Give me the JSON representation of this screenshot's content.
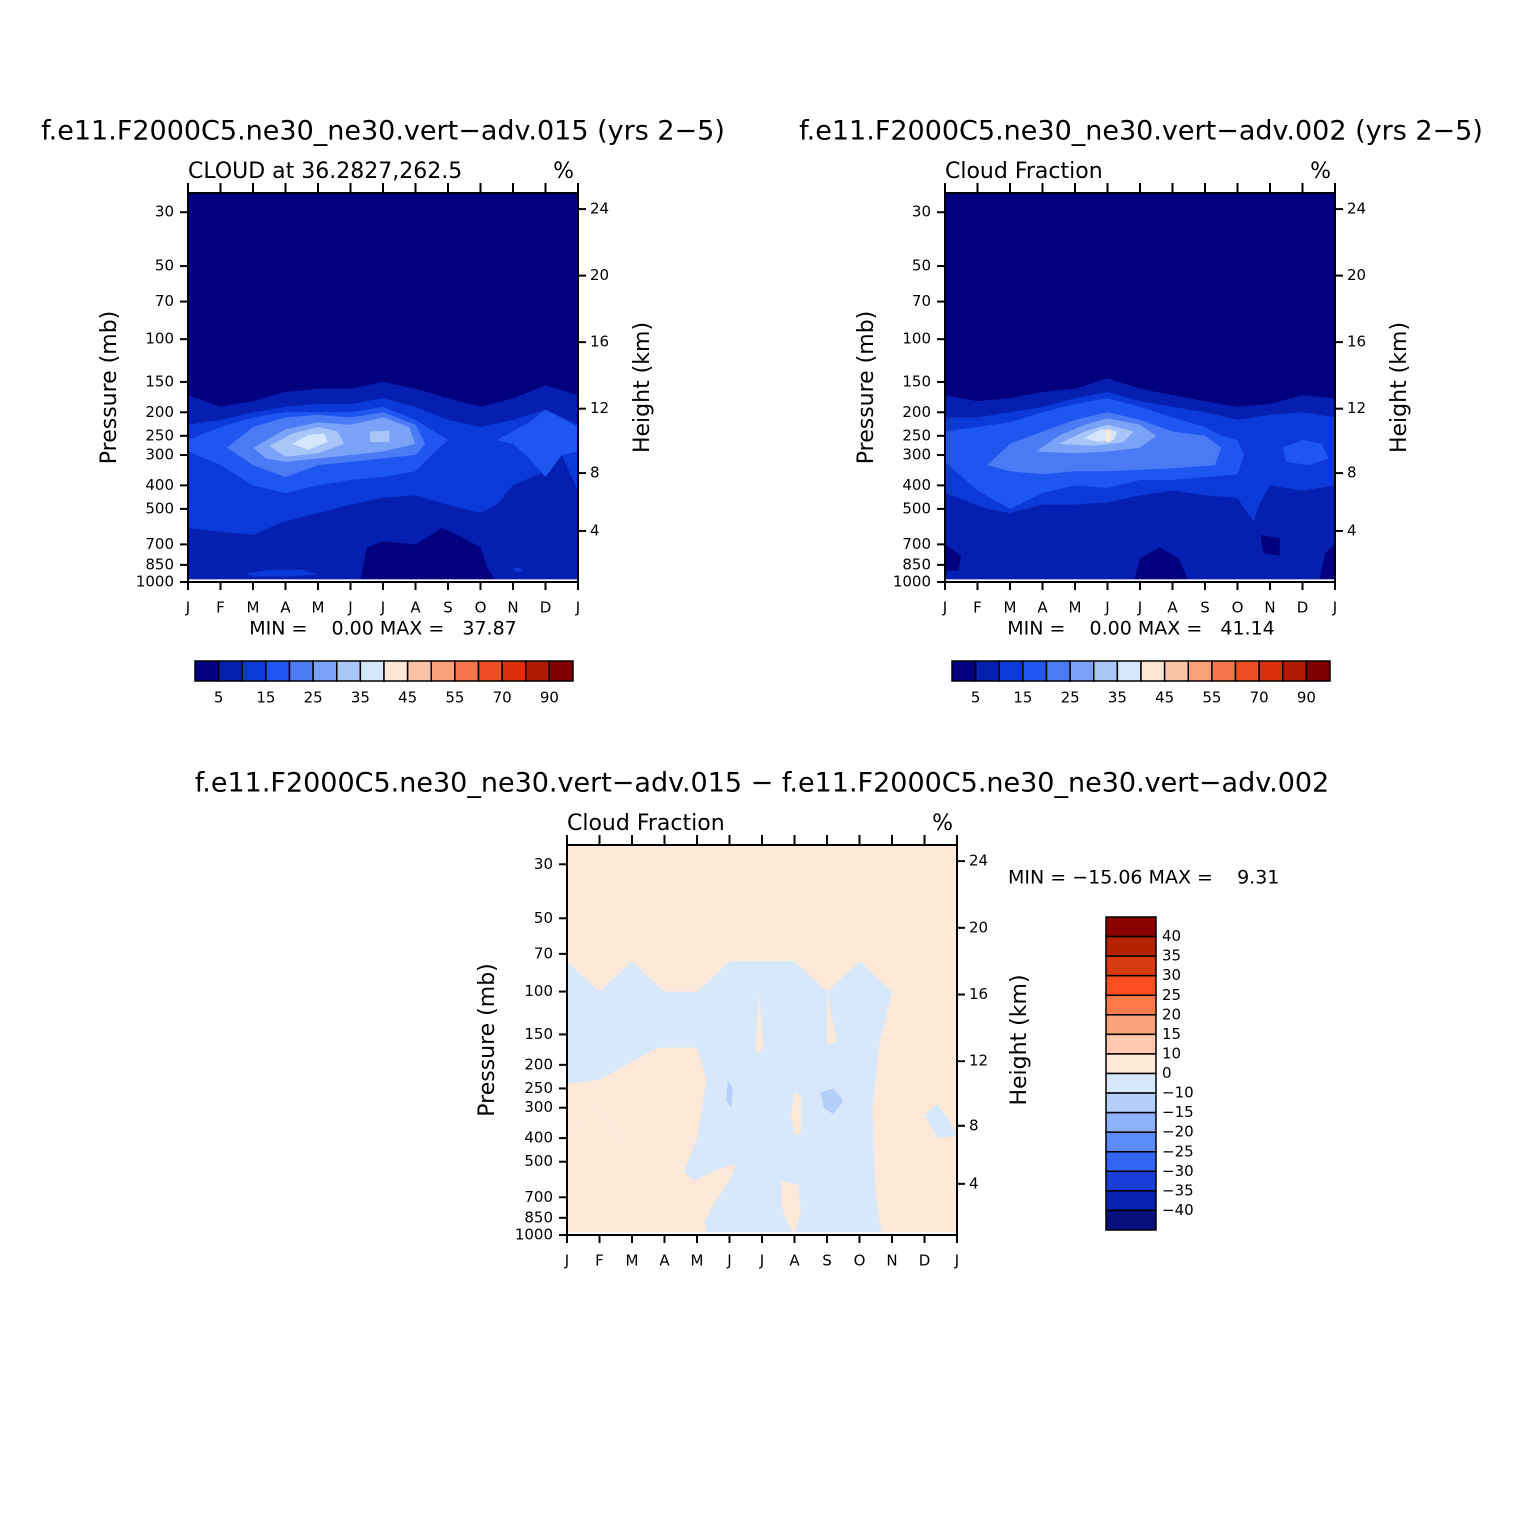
{
  "chart_data": [
    {
      "type": "contour",
      "title": "f.e11.F2000C5.ne30_ne30.vert−adv.015 (yrs 2−5)",
      "subtitle": "CLOUD at 36.2827,262.5",
      "units": "%",
      "ylabel": "Pressure (mb)",
      "y2label": "Height (km)",
      "stats": "MIN =    0.00 MAX =   37.87",
      "categories": [
        "J",
        "F",
        "M",
        "A",
        "M",
        "J",
        "J",
        "A",
        "S",
        "O",
        "N",
        "D",
        "J"
      ],
      "ylim": [
        1000,
        25
      ],
      "log_y": true,
      "yticks": [
        30,
        50,
        70,
        100,
        150,
        200,
        250,
        300,
        400,
        500,
        700,
        850,
        1000
      ],
      "y2lim": [
        0.1,
        25.2
      ],
      "y2ticks": [
        4,
        8,
        12,
        16,
        20,
        24
      ],
      "colorbar": {
        "orientation": "horizontal",
        "levels": [
          5,
          15,
          25,
          35,
          45,
          55,
          70,
          90
        ],
        "colors": [
          "#03007f",
          "#0520b0",
          "#0b3ad8",
          "#1f56f0",
          "#4a7bf5",
          "#7aa3f7",
          "#a9c6f8",
          "#d4e6fb",
          "#fde6d4",
          "#fbc4a6",
          "#f7a07a",
          "#f6764c",
          "#ef4d24",
          "#d92e0c",
          "#ae1a00",
          "#7f0000"
        ]
      }
    },
    {
      "type": "contour",
      "title": "f.e11.F2000C5.ne30_ne30.vert−adv.002 (yrs 2−5)",
      "subtitle": "Cloud Fraction",
      "units": "%",
      "ylabel": "Pressure (mb)",
      "y2label": "Height (km)",
      "stats": "MIN =    0.00 MAX =   41.14",
      "categories": [
        "J",
        "F",
        "M",
        "A",
        "M",
        "J",
        "J",
        "A",
        "S",
        "O",
        "N",
        "D",
        "J"
      ],
      "ylim": [
        1000,
        25
      ],
      "log_y": true,
      "yticks": [
        30,
        50,
        70,
        100,
        150,
        200,
        250,
        300,
        400,
        500,
        700,
        850,
        1000
      ],
      "y2lim": [
        0.1,
        25.2
      ],
      "y2ticks": [
        4,
        8,
        12,
        16,
        20,
        24
      ],
      "colorbar": {
        "orientation": "horizontal",
        "levels": [
          5,
          15,
          25,
          35,
          45,
          55,
          70,
          90
        ],
        "colors": [
          "#03007f",
          "#0520b0",
          "#0b3ad8",
          "#1f56f0",
          "#4a7bf5",
          "#7aa3f7",
          "#a9c6f8",
          "#d4e6fb",
          "#fde6d4",
          "#fbc4a6",
          "#f7a07a",
          "#f6764c",
          "#ef4d24",
          "#d92e0c",
          "#ae1a00",
          "#7f0000"
        ]
      }
    },
    {
      "type": "contour",
      "title": "f.e11.F2000C5.ne30_ne30.vert−adv.015 − f.e11.F2000C5.ne30_ne30.vert−adv.002",
      "subtitle": "Cloud Fraction",
      "units": "%",
      "ylabel": "Pressure (mb)",
      "y2label": "Height (km)",
      "stats": "MIN = −15.06 MAX =    9.31",
      "categories": [
        "J",
        "F",
        "M",
        "A",
        "M",
        "J",
        "J",
        "A",
        "S",
        "O",
        "N",
        "D",
        "J"
      ],
      "ylim": [
        1000,
        25
      ],
      "log_y": true,
      "yticks": [
        30,
        50,
        70,
        100,
        150,
        200,
        250,
        300,
        400,
        500,
        700,
        850,
        1000
      ],
      "y2lim": [
        0.1,
        25.2
      ],
      "y2ticks": [
        4,
        8,
        12,
        16,
        20,
        24
      ],
      "colorbar": {
        "orientation": "vertical",
        "levels": [
          40,
          35,
          30,
          25,
          20,
          15,
          10,
          0,
          {
            "value": -10,
            "label": "−10"
          },
          {
            "value": -15,
            "label": "−15"
          },
          {
            "value": -20,
            "label": "−20"
          },
          {
            "value": -25,
            "label": "−25"
          },
          {
            "value": -30,
            "label": "−30"
          },
          {
            "value": -35,
            "label": "−35"
          },
          {
            "value": -40,
            "label": "−40"
          }
        ],
        "colors": [
          "#8b0000",
          "#b52200",
          "#d83a10",
          "#ff4f20",
          "#ff7a48",
          "#f9a27a",
          "#fdcab0",
          "#fee8d7",
          "#d6e8fa",
          "#b4cffa",
          "#8fb1fb",
          "#5c8cf7",
          "#3465f0",
          "#1a3fd8",
          "#0c22b0",
          "#06107d"
        ]
      }
    }
  ]
}
